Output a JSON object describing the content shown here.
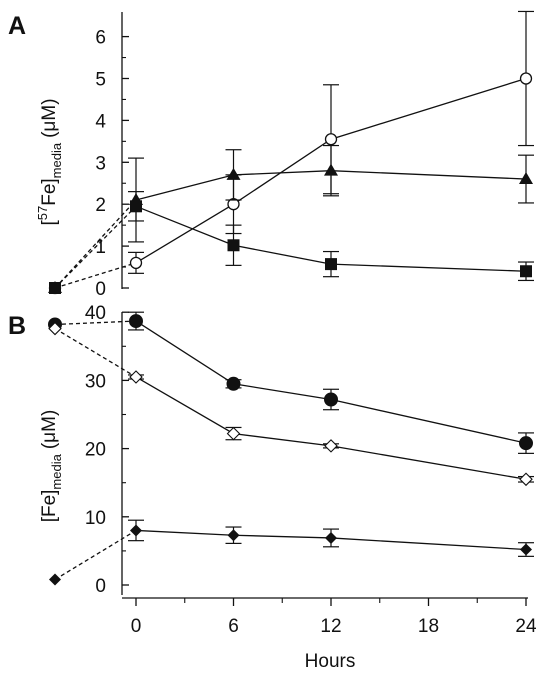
{
  "chart_data": [
    {
      "panel": "A",
      "type": "line",
      "ylabel": "[57Fe]media (μM)",
      "ylabel_parts": {
        "open": "[",
        "sup": "57",
        "element": "Fe]",
        "sub": "media",
        "unit": "(μM)"
      },
      "ylim": [
        0,
        6.5
      ],
      "yticks": [
        0,
        1,
        2,
        3,
        4,
        5,
        6
      ],
      "grid": false,
      "series": [
        {
          "marker": "open-circle",
          "baseline": 0,
          "points": [
            {
              "x": 0,
              "y": 0.6,
              "err": 0.25
            },
            {
              "x": 6,
              "y": 2.0,
              "err": 0.7
            },
            {
              "x": 12,
              "y": 3.55,
              "err": 1.3
            },
            {
              "x": 24,
              "y": 5.0,
              "err": 1.6
            }
          ]
        },
        {
          "marker": "filled-triangle",
          "baseline": 0,
          "points": [
            {
              "x": 0,
              "y": 2.1,
              "err": 1.0
            },
            {
              "x": 6,
              "y": 2.7,
              "err": 0.6
            },
            {
              "x": 12,
              "y": 2.8,
              "err": 0.6
            },
            {
              "x": 24,
              "y": 2.6,
              "err": 0.57
            }
          ]
        },
        {
          "marker": "filled-square",
          "baseline": 0,
          "points": [
            {
              "x": 0,
              "y": 1.95,
              "err": 0.35
            },
            {
              "x": 6,
              "y": 1.02,
              "err": 0.48
            },
            {
              "x": 12,
              "y": 0.57,
              "err": 0.3
            },
            {
              "x": 24,
              "y": 0.4,
              "err": 0.22
            }
          ]
        }
      ]
    },
    {
      "panel": "B",
      "type": "line",
      "ylabel": "[Fe]media (μM)",
      "ylabel_parts": {
        "element": "[Fe]",
        "sub": "media",
        "unit": "(μM)"
      },
      "xlabel": "Hours",
      "xticks": [
        0,
        6,
        12,
        18,
        24
      ],
      "ylim": [
        -1,
        40
      ],
      "yticks": [
        0,
        10,
        20,
        30,
        40
      ],
      "grid": false,
      "series": [
        {
          "marker": "filled-circle",
          "baseline": 38.2,
          "points": [
            {
              "x": 0,
              "y": 38.7,
              "err": 1.3
            },
            {
              "x": 6,
              "y": 29.5,
              "err": 0.6
            },
            {
              "x": 12,
              "y": 27.2,
              "err": 1.5
            },
            {
              "x": 24,
              "y": 20.8,
              "err": 1.5
            }
          ]
        },
        {
          "marker": "open-diamond",
          "baseline": 37.6,
          "points": [
            {
              "x": 0,
              "y": 30.5,
              "err": 0.3
            },
            {
              "x": 6,
              "y": 22.2,
              "err": 0.9
            },
            {
              "x": 12,
              "y": 20.4,
              "err": 0.3
            },
            {
              "x": 24,
              "y": 15.5,
              "err": 0.4
            }
          ]
        },
        {
          "marker": "filled-diamond",
          "baseline": 0.8,
          "points": [
            {
              "x": 0,
              "y": 8.0,
              "err": 1.5
            },
            {
              "x": 6,
              "y": 7.3,
              "err": 1.2
            },
            {
              "x": 12,
              "y": 6.9,
              "err": 1.3
            },
            {
              "x": 24,
              "y": 5.2,
              "err": 1.0
            }
          ]
        }
      ]
    }
  ]
}
